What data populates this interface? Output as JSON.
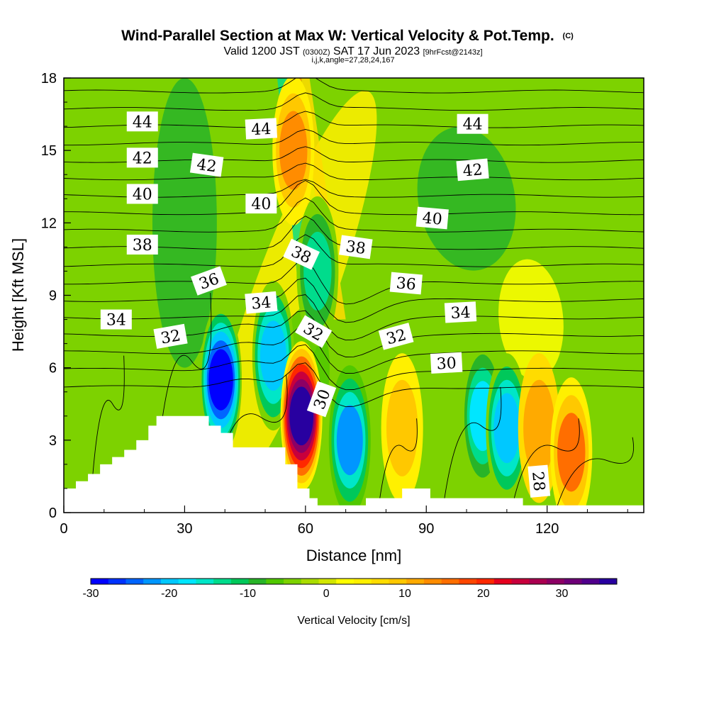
{
  "title": {
    "main": "Wind-Parallel Section at Max W: Vertical Velocity & Pot.Temp.",
    "copyright": "(C)",
    "valid_prefix": "Valid 1200 JST",
    "valid_utc": "(0300Z)",
    "valid_date": "SAT 17 Jun 2023",
    "forecast": "[9hrFcst@2143z]",
    "ijk": "i,j,k,angle=27,28,24,167"
  },
  "chart_data": {
    "type": "heatmap",
    "xlabel": "Distance [nm]",
    "ylabel": "Height [Kft MSL]",
    "xlim": [
      0,
      144
    ],
    "ylim": [
      0,
      18
    ],
    "x_ticks": [
      0,
      30,
      60,
      90,
      120
    ],
    "y_ticks": [
      0,
      3,
      6,
      9,
      12,
      15,
      18
    ],
    "colorbar": {
      "label": "Vertical Velocity [cm/s]",
      "range": [
        -30,
        37
      ],
      "ticks": [
        -30,
        -20,
        -10,
        0,
        10,
        20,
        30
      ],
      "colors": [
        "#0000ff",
        "#0032ff",
        "#0064ff",
        "#0096ff",
        "#00c8ff",
        "#00e6ff",
        "#00e6c8",
        "#00dc8c",
        "#00c85a",
        "#28b428",
        "#50c800",
        "#7dd200",
        "#aadc00",
        "#d2e600",
        "#ffff00",
        "#fff000",
        "#ffdc00",
        "#ffc800",
        "#ffaa00",
        "#ff8c00",
        "#ff6e00",
        "#ff4600",
        "#ff2800",
        "#e6001e",
        "#c8003c",
        "#aa0050",
        "#8c0064",
        "#6e0078",
        "#50008c",
        "#2800a0"
      ]
    },
    "vertical_velocity_features": [
      {
        "x": 39,
        "y": 5.5,
        "value": -30
      },
      {
        "x": 52,
        "y": 6.5,
        "value": -20
      },
      {
        "x": 59,
        "y": 4.0,
        "value": 35
      },
      {
        "x": 71,
        "y": 3.0,
        "value": -22
      },
      {
        "x": 84,
        "y": 3.5,
        "value": 10
      },
      {
        "x": 104,
        "y": 4.0,
        "value": -18
      },
      {
        "x": 110,
        "y": 3.5,
        "value": -20
      },
      {
        "x": 118,
        "y": 3.5,
        "value": 12
      },
      {
        "x": 126,
        "y": 2.5,
        "value": 15
      },
      {
        "x": 57,
        "y": 15,
        "value": 14
      },
      {
        "x": 63,
        "y": 10,
        "value": -14
      }
    ],
    "theta_contour_labels": [
      {
        "value": "44",
        "x": 19.5,
        "y": 16.2,
        "angle": 0
      },
      {
        "value": "44",
        "x": 49,
        "y": 15.9,
        "angle": -3
      },
      {
        "value": "44",
        "x": 101.5,
        "y": 16.1,
        "angle": 0
      },
      {
        "value": "42",
        "x": 19.5,
        "y": 14.7,
        "angle": 0
      },
      {
        "value": "42",
        "x": 35.5,
        "y": 14.4,
        "angle": 8
      },
      {
        "value": "42",
        "x": 101.5,
        "y": 14.2,
        "angle": -5
      },
      {
        "value": "40",
        "x": 19.5,
        "y": 13.2,
        "angle": 0
      },
      {
        "value": "40",
        "x": 49,
        "y": 12.8,
        "angle": 0
      },
      {
        "value": "40",
        "x": 91.5,
        "y": 12.2,
        "angle": 5
      },
      {
        "value": "38",
        "x": 19.5,
        "y": 11.1,
        "angle": 0
      },
      {
        "value": "38",
        "x": 59,
        "y": 10.7,
        "angle": 25
      },
      {
        "value": "38",
        "x": 72.5,
        "y": 11.0,
        "angle": 8
      },
      {
        "value": "36",
        "x": 36,
        "y": 9.6,
        "angle": -20
      },
      {
        "value": "36",
        "x": 85,
        "y": 9.5,
        "angle": 5
      },
      {
        "value": "34",
        "x": 13,
        "y": 8.0,
        "angle": 0
      },
      {
        "value": "34",
        "x": 49,
        "y": 8.7,
        "angle": -5
      },
      {
        "value": "34",
        "x": 98.5,
        "y": 8.3,
        "angle": -3
      },
      {
        "value": "32",
        "x": 26.5,
        "y": 7.3,
        "angle": -10
      },
      {
        "value": "32",
        "x": 62,
        "y": 7.5,
        "angle": 30
      },
      {
        "value": "32",
        "x": 82.5,
        "y": 7.3,
        "angle": -15
      },
      {
        "value": "30",
        "x": 95,
        "y": 6.2,
        "angle": -3
      },
      {
        "value": "30",
        "x": 64,
        "y": 4.7,
        "angle": -70
      },
      {
        "value": "28",
        "x": 118,
        "y": 1.3,
        "angle": 85
      }
    ],
    "terrain_profile": [
      [
        0,
        1.0
      ],
      [
        3,
        1.0
      ],
      [
        3,
        1.3
      ],
      [
        6,
        1.3
      ],
      [
        6,
        1.6
      ],
      [
        9,
        1.6
      ],
      [
        9,
        2.0
      ],
      [
        12,
        2.0
      ],
      [
        12,
        2.3
      ],
      [
        15,
        2.3
      ],
      [
        15,
        2.6
      ],
      [
        18,
        2.6
      ],
      [
        18,
        3.0
      ],
      [
        21,
        3.0
      ],
      [
        21,
        3.6
      ],
      [
        23,
        3.6
      ],
      [
        23,
        4.0
      ],
      [
        36,
        4.0
      ],
      [
        36,
        3.6
      ],
      [
        39,
        3.6
      ],
      [
        39,
        3.3
      ],
      [
        42,
        3.3
      ],
      [
        42,
        2.7
      ],
      [
        55,
        2.7
      ],
      [
        55,
        2.0
      ],
      [
        58,
        2.0
      ],
      [
        58,
        1.0
      ],
      [
        61,
        1.0
      ],
      [
        61,
        0.6
      ],
      [
        63,
        0.6
      ],
      [
        63,
        0.3
      ],
      [
        75,
        0.3
      ],
      [
        75,
        0.6
      ],
      [
        84,
        0.6
      ],
      [
        84,
        1.0
      ],
      [
        91,
        1.0
      ],
      [
        91,
        0.6
      ],
      [
        114,
        0.6
      ],
      [
        114,
        0.3
      ],
      [
        144,
        0.3
      ]
    ]
  }
}
